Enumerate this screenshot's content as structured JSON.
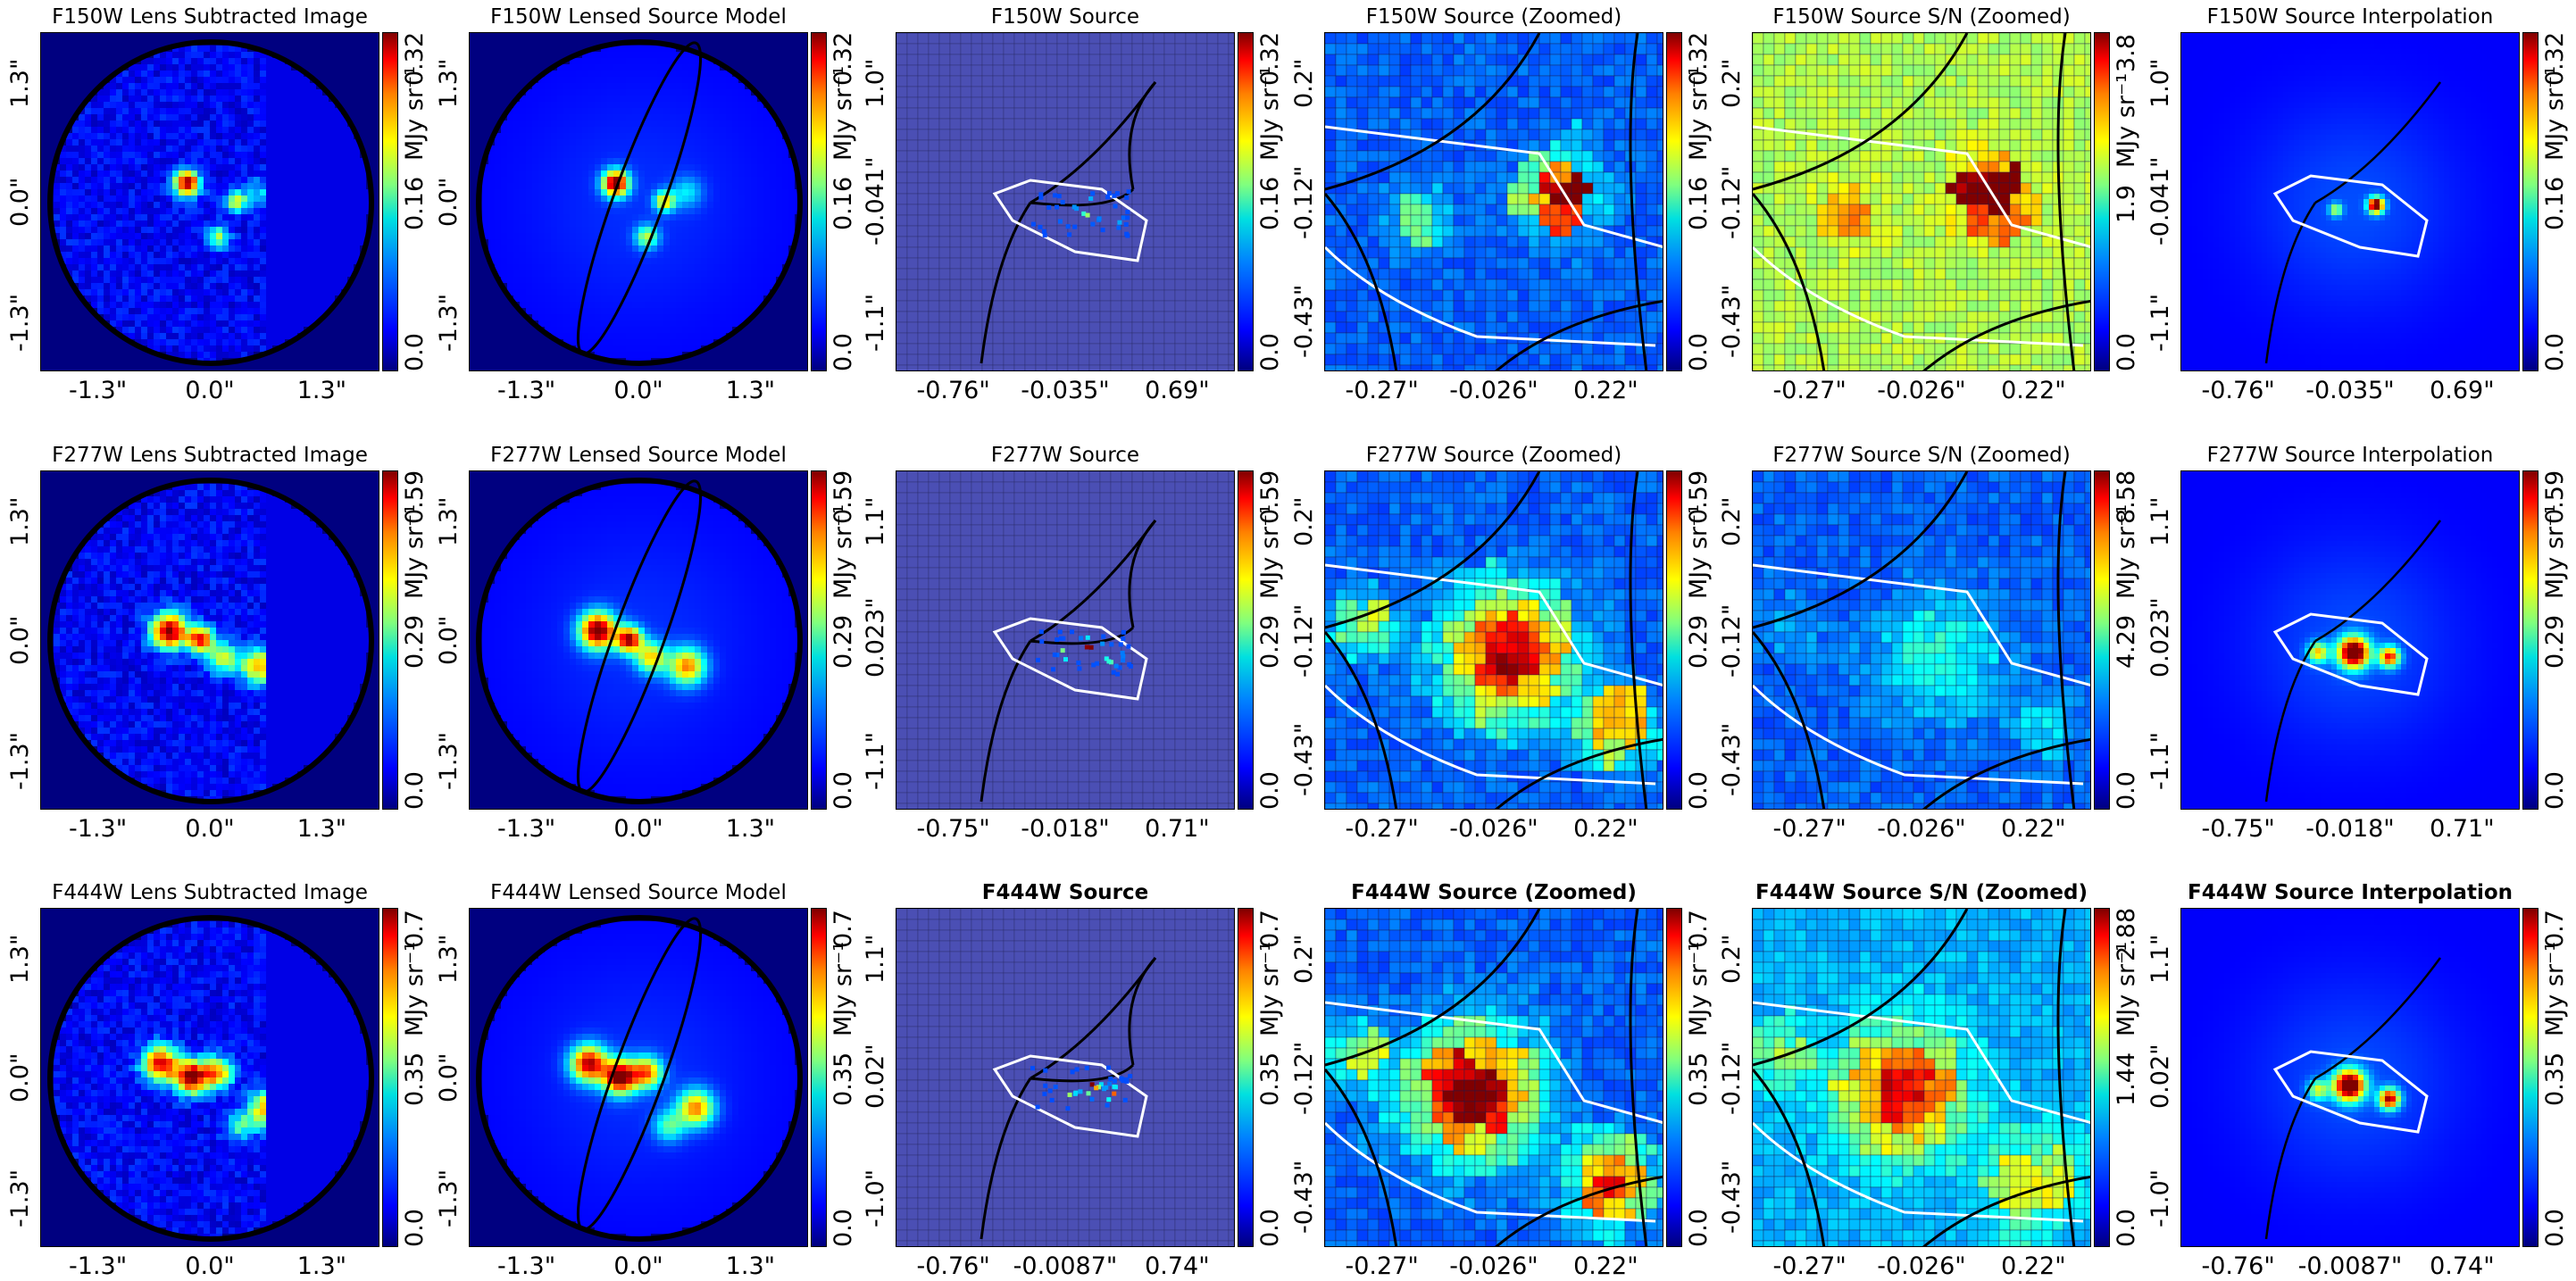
{
  "figure": {
    "unit_label": "MJy sr⁻¹",
    "rows": [
      {
        "filter": "F150W",
        "bold_titles": false,
        "panels": [
          {
            "title": "F150W Lens Subtracted Image",
            "kind": "lens_image",
            "xticks": [
              "-1.3\"",
              "0.0\"",
              "1.3\""
            ],
            "yticks": [
              "1.3\"",
              "0.0\"",
              "-1.3\""
            ],
            "cbar": [
              "0.0",
              "0.16",
              "0.32"
            ]
          },
          {
            "title": "F150W Lensed Source Model",
            "kind": "lens_model",
            "xticks": [
              "-1.3\"",
              "0.0\"",
              "1.3\""
            ],
            "yticks": [
              "1.3\"",
              "0.0\"",
              "-1.3\""
            ],
            "cbar": [
              "0.0",
              "0.16",
              "0.32"
            ]
          },
          {
            "title": "F150W Source",
            "kind": "source",
            "xticks": [
              "-0.76\"",
              "-0.035\"",
              "0.69\""
            ],
            "yticks": [
              "1.0\"",
              "-0.041\"",
              "-1.1\""
            ],
            "cbar": [
              "0.0",
              "0.16",
              "0.32"
            ]
          },
          {
            "title": "F150W Source (Zoomed)",
            "kind": "zoom",
            "xticks": [
              "-0.27\"",
              "-0.026\"",
              "0.22\""
            ],
            "yticks": [
              "0.2\"",
              "-0.12\"",
              "-0.43\""
            ],
            "cbar": [
              "0.0",
              "0.16",
              "0.32"
            ]
          },
          {
            "title": "F150W Source S/N (Zoomed)",
            "kind": "sn",
            "xticks": [
              "-0.27\"",
              "-0.026\"",
              "0.22\""
            ],
            "yticks": [
              "0.2\"",
              "-0.12\"",
              "-0.43\""
            ],
            "cbar": [
              "0.0",
              "1.9",
              "3.8"
            ],
            "cbar_unit": false
          },
          {
            "title": "F150W Source Interpolation",
            "kind": "interp",
            "xticks": [
              "-0.76\"",
              "-0.035\"",
              "0.69\""
            ],
            "yticks": [
              "1.0\"",
              "-0.041\"",
              "-1.1\""
            ],
            "cbar": [
              "0.0",
              "0.16",
              "0.32"
            ]
          }
        ]
      },
      {
        "filter": "F277W",
        "bold_titles": false,
        "panels": [
          {
            "title": "F277W Lens Subtracted Image",
            "kind": "lens_image",
            "xticks": [
              "-1.3\"",
              "0.0\"",
              "1.3\""
            ],
            "yticks": [
              "1.3\"",
              "0.0\"",
              "-1.3\""
            ],
            "cbar": [
              "0.0",
              "0.29",
              "0.59"
            ]
          },
          {
            "title": "F277W Lensed Source Model",
            "kind": "lens_model",
            "xticks": [
              "-1.3\"",
              "0.0\"",
              "1.3\""
            ],
            "yticks": [
              "1.3\"",
              "0.0\"",
              "-1.3\""
            ],
            "cbar": [
              "0.0",
              "0.29",
              "0.59"
            ]
          },
          {
            "title": "F277W Source",
            "kind": "source",
            "xticks": [
              "-0.75\"",
              "-0.018\"",
              "0.71\""
            ],
            "yticks": [
              "1.1\"",
              "0.023\"",
              "-1.1\""
            ],
            "cbar": [
              "0.0",
              "0.29",
              "0.59"
            ]
          },
          {
            "title": "F277W Source (Zoomed)",
            "kind": "zoom",
            "xticks": [
              "-0.27\"",
              "-0.026\"",
              "0.22\""
            ],
            "yticks": [
              "0.2\"",
              "-0.12\"",
              "-0.43\""
            ],
            "cbar": [
              "0.0",
              "0.29",
              "0.59"
            ]
          },
          {
            "title": "F277W Source S/N (Zoomed)",
            "kind": "sn",
            "xticks": [
              "-0.27\"",
              "-0.026\"",
              "0.22\""
            ],
            "yticks": [
              "0.2\"",
              "-0.12\"",
              "-0.43\""
            ],
            "cbar": [
              "0.0",
              "4.29",
              "8.58"
            ],
            "cbar_unit": false
          },
          {
            "title": "F277W Source Interpolation",
            "kind": "interp",
            "xticks": [
              "-0.75\"",
              "-0.018\"",
              "0.71\""
            ],
            "yticks": [
              "1.1\"",
              "0.023\"",
              "-1.1\""
            ],
            "cbar": [
              "0.0",
              "0.29",
              "0.59"
            ]
          }
        ]
      },
      {
        "filter": "F444W",
        "bold_titles": true,
        "panels": [
          {
            "title": "F444W Lens Subtracted Image",
            "kind": "lens_image",
            "bold": false,
            "xticks": [
              "-1.3\"",
              "0.0\"",
              "1.3\""
            ],
            "yticks": [
              "1.3\"",
              "0.0\"",
              "-1.3\""
            ],
            "cbar": [
              "0.0",
              "0.35",
              "0.7"
            ]
          },
          {
            "title": "F444W Lensed Source Model",
            "kind": "lens_model",
            "bold": false,
            "xticks": [
              "-1.3\"",
              "0.0\"",
              "1.3\""
            ],
            "yticks": [
              "1.3\"",
              "0.0\"",
              "-1.3\""
            ],
            "cbar": [
              "0.0",
              "0.35",
              "0.7"
            ]
          },
          {
            "title": "F444W Source",
            "kind": "source",
            "bold": true,
            "xticks": [
              "-0.76\"",
              "-0.0087\"",
              "0.74\""
            ],
            "yticks": [
              "1.1\"",
              "0.02\"",
              "-1.0\""
            ],
            "cbar": [
              "0.0",
              "0.35",
              "0.7"
            ]
          },
          {
            "title": "F444W Source (Zoomed)",
            "kind": "zoom",
            "bold": true,
            "xticks": [
              "-0.27\"",
              "-0.026\"",
              "0.22\""
            ],
            "yticks": [
              "0.2\"",
              "-0.12\"",
              "-0.43\""
            ],
            "cbar": [
              "0.0",
              "0.35",
              "0.7"
            ]
          },
          {
            "title": "F444W Source S/N (Zoomed)",
            "kind": "sn",
            "bold": true,
            "xticks": [
              "-0.27\"",
              "-0.026\"",
              "0.22\""
            ],
            "yticks": [
              "0.2\"",
              "-0.12\"",
              "-0.43\""
            ],
            "cbar": [
              "0.0",
              "1.44",
              "2.88"
            ],
            "cbar_unit": false
          },
          {
            "title": "F444W Source Interpolation",
            "kind": "interp",
            "bold": true,
            "xticks": [
              "-0.76\"",
              "-0.0087\"",
              "0.74\""
            ],
            "yticks": [
              "1.1\"",
              "0.02\"",
              "-1.0\""
            ],
            "cbar": [
              "0.0",
              "0.35",
              "0.7"
            ]
          }
        ]
      }
    ]
  },
  "chart_data": {
    "type": "heatmap",
    "grid_rows": 3,
    "grid_cols": 6,
    "colormap": "jet",
    "colorbar_ranges": {
      "F150W": {
        "flux": [
          0.0,
          0.16,
          0.32
        ],
        "sn": [
          0.0,
          1.9,
          3.8
        ]
      },
      "F277W": {
        "flux": [
          0.0,
          0.29,
          0.59
        ],
        "sn": [
          0.0,
          4.29,
          8.58
        ]
      },
      "F444W": {
        "flux": [
          0.0,
          0.35,
          0.7
        ],
        "sn": [
          0.0,
          1.44,
          2.88
        ]
      }
    }
  }
}
